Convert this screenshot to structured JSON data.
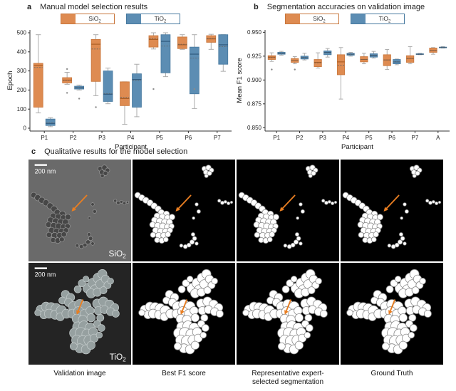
{
  "colors": {
    "sio2_fill": "#DE8B51",
    "sio2_edge": "#C8763B",
    "sio2_median": "#A85B22",
    "tio2_fill": "#5C8DB3",
    "tio2_edge": "#47799F",
    "tio2_median": "#2D567A",
    "whisker": "#ABABAB",
    "mean_line": "#666666",
    "flier": "#8A8A8A",
    "axis": "#333333",
    "arrow": "#E87E22"
  },
  "panel_a": {
    "letter": "a",
    "title": "Manual model selection results",
    "legend": [
      {
        "base": "SiO",
        "sub": "2",
        "color_key": "sio2"
      },
      {
        "base": "TiO",
        "sub": "2",
        "color_key": "tio2"
      }
    ],
    "chart_data": {
      "type": "box",
      "categories": [
        "P1",
        "P2",
        "P3",
        "P4",
        "P5",
        "P6",
        "P7"
      ],
      "xlabel": "Participant",
      "ylabel": "Epoch",
      "ylim": [
        -15,
        515
      ],
      "yticks": [
        0,
        100,
        200,
        300,
        400,
        500
      ],
      "ytick_decimals": 0,
      "series": [
        {
          "name": "SiO2",
          "color_key": "sio2",
          "boxes": [
            [
              80,
              110,
              330,
              340,
              490,
              318
            ],
            [
              230,
              237,
              252,
              265,
              293,
              250
            ],
            [
              170,
              245,
              440,
              465,
              490,
              415
            ],
            [
              20,
              118,
              155,
              243,
              243,
              162
            ],
            [
              415,
              425,
              465,
              485,
              500,
              470
            ],
            [
              413,
              417,
              437,
              478,
              490,
              440
            ],
            [
              413,
              450,
              468,
              485,
              492,
              470
            ]
          ]
        },
        {
          "name": "TiO2",
          "color_key": "tio2",
          "boxes": [
            [
              8,
              14,
              25,
              48,
              55,
              28
            ],
            [
              200,
              205,
              212,
              220,
              226,
              212
            ],
            [
              128,
              140,
              178,
              300,
              315,
              182
            ],
            [
              60,
              110,
              255,
              285,
              335,
              250
            ],
            [
              270,
              290,
              455,
              490,
              500,
              430
            ],
            [
              103,
              180,
              388,
              425,
              490,
              368
            ],
            [
              298,
              335,
              437,
              490,
              490,
              428
            ]
          ]
        }
      ],
      "fliers": [
        {
          "series": 0,
          "cat": 1,
          "y": 185
        },
        {
          "series": 0,
          "cat": 1,
          "y": 310
        },
        {
          "series": 1,
          "cat": 1,
          "y": 155
        },
        {
          "series": 0,
          "cat": 2,
          "y": 110
        },
        {
          "series": 0,
          "cat": 4,
          "y": 205
        },
        {
          "series": 1,
          "cat": 5,
          "y": 205
        }
      ]
    }
  },
  "panel_b": {
    "letter": "b",
    "title": "Segmentation accuracies on validation image",
    "legend": [
      {
        "base": "SiO",
        "sub": "2",
        "color_key": "sio2"
      },
      {
        "base": "TiO",
        "sub": "2",
        "color_key": "tio2"
      }
    ],
    "chart_data": {
      "type": "box",
      "categories": [
        "P1",
        "P2",
        "P3",
        "P4",
        "P5",
        "P6",
        "P7",
        "A"
      ],
      "xlabel": "Participant",
      "ylabel": "Mean F1 score",
      "ylim": [
        0.8465,
        0.9525
      ],
      "yticks": [
        0.85,
        0.875,
        0.9,
        0.925,
        0.95
      ],
      "ytick_decimals": 3,
      "series": [
        {
          "name": "SiO2",
          "color_key": "sio2",
          "boxes": [
            [
              0.9195,
              0.9215,
              0.924,
              0.9255,
              0.9285,
              0.9235
            ],
            [
              0.917,
              0.9185,
              0.9205,
              0.9225,
              0.9245,
              0.9205
            ],
            [
              0.9125,
              0.914,
              0.9185,
              0.9215,
              0.9285,
              0.918
            ],
            [
              0.88,
              0.9055,
              0.919,
              0.9265,
              0.934,
              0.9155
            ],
            [
              0.917,
              0.919,
              0.9215,
              0.9245,
              0.928,
              0.9215
            ],
            [
              0.911,
              0.915,
              0.921,
              0.9265,
              0.932,
              0.921
            ],
            [
              0.917,
              0.9185,
              0.9225,
              0.9255,
              0.935,
              0.9225
            ],
            [
              0.927,
              0.929,
              0.931,
              0.9335,
              0.934,
              0.931
            ]
          ]
        },
        {
          "name": "TiO2",
          "color_key": "tio2",
          "boxes": [
            [
              0.926,
              0.927,
              0.928,
              0.929,
              0.93,
              0.928
            ],
            [
              0.921,
              0.922,
              0.9235,
              0.925,
              0.928,
              0.9235
            ],
            [
              0.924,
              0.9265,
              0.929,
              0.9305,
              0.933,
              0.9285
            ],
            [
              0.925,
              0.926,
              0.927,
              0.928,
              0.929,
              0.927
            ],
            [
              0.923,
              0.924,
              0.926,
              0.9275,
              0.93,
              0.9255
            ],
            [
              0.916,
              0.917,
              0.919,
              0.9215,
              0.922,
              0.919
            ],
            [
              0.9265,
              0.927,
              0.927,
              0.9275,
              0.928,
              0.927
            ],
            [
              0.9335,
              0.934,
              0.934,
              0.9345,
              0.935,
              0.934
            ]
          ]
        }
      ],
      "fliers": [
        {
          "series": 0,
          "cat": 0,
          "y": 0.911
        },
        {
          "series": 0,
          "cat": 1,
          "y": 0.911
        }
      ]
    }
  },
  "panel_c": {
    "letter": "c",
    "title": "Qualitative results for the model selection",
    "scale_bar_label": "200 nm",
    "captions": [
      [
        "Validation image"
      ],
      [
        "Best F1 score"
      ],
      [
        "Representative expert-",
        "selected segmentation"
      ],
      [
        "Ground Truth"
      ]
    ],
    "rows": [
      {
        "type": "sio2",
        "label": {
          "base": "SiO",
          "sub": "2"
        }
      },
      {
        "type": "tio2",
        "label": {
          "base": "TiO",
          "sub": "2"
        }
      }
    ],
    "sem_colors": {
      "sio2_bg": "#6A6A6A",
      "sio2_particle": "#474747",
      "sio2_rim": "#9A9A9A",
      "tio2_bg": "#242424",
      "tio2_particle": "#96A0A0",
      "tio2_rim": "#C9D0D0",
      "mask_bg": "#000000",
      "mask_fill": "#FFFFFF",
      "mask_edge": "#8A8A8A"
    },
    "arrows": {
      "sio2": [
        57,
        35,
        42,
        51
      ],
      "tio2": [
        53,
        36,
        47,
        51
      ]
    },
    "particles": {
      "sio2": [
        [
          5,
          35,
          2.8
        ],
        [
          9,
          37.5,
          3
        ],
        [
          13,
          40,
          3
        ],
        [
          17,
          42.5,
          3
        ],
        [
          21,
          45.5,
          3
        ],
        [
          25,
          48.5,
          3
        ],
        [
          28,
          52,
          3
        ],
        [
          33,
          53.5,
          3
        ],
        [
          24,
          55.5,
          3
        ],
        [
          29,
          56.5,
          3.2
        ],
        [
          34,
          57.5,
          3.2
        ],
        [
          38.5,
          56.5,
          2.8
        ],
        [
          21.5,
          59.5,
          3
        ],
        [
          26.5,
          60.5,
          3.2
        ],
        [
          31.5,
          61.5,
          3.3
        ],
        [
          36,
          61.5,
          3
        ],
        [
          19.5,
          64,
          2.8
        ],
        [
          24.5,
          65,
          3.2
        ],
        [
          29.5,
          65.5,
          3.3
        ],
        [
          34,
          66.5,
          3.2
        ],
        [
          38,
          65.5,
          2.6
        ],
        [
          22.5,
          69.5,
          3
        ],
        [
          27.5,
          70.5,
          3.2
        ],
        [
          32.5,
          70.5,
          3.2
        ],
        [
          36.5,
          69.5,
          2.6
        ],
        [
          20,
          74,
          2.6
        ],
        [
          25.5,
          74.5,
          3
        ],
        [
          30.5,
          74.5,
          3
        ],
        [
          34.5,
          73.5,
          2.6
        ],
        [
          24,
          79,
          2.6
        ],
        [
          28.5,
          79.5,
          2.8
        ],
        [
          32.5,
          78.5,
          2.4
        ],
        [
          70,
          9,
          2.4
        ],
        [
          74,
          8,
          2.6
        ],
        [
          77,
          10.5,
          2.2
        ],
        [
          71.5,
          12.5,
          2.4
        ],
        [
          75,
          13.5,
          2.2
        ],
        [
          72,
          16,
          1.8
        ],
        [
          62.5,
          44,
          1.6
        ],
        [
          64.5,
          51,
          1.8
        ],
        [
          59.5,
          57.5,
          1.3
        ],
        [
          84.5,
          40.5,
          1.5
        ],
        [
          87.5,
          42.5,
          1.7
        ],
        [
          90.5,
          41.5,
          1.4
        ],
        [
          93.5,
          43,
          1.5
        ],
        [
          96.5,
          42,
          1.2
        ],
        [
          47.5,
          84.5,
          1.6
        ],
        [
          51.5,
          85.5,
          2
        ],
        [
          55,
          84,
          2
        ],
        [
          58,
          81,
          2.2
        ],
        [
          60.5,
          77.5,
          2
        ],
        [
          59,
          73.5,
          1.8
        ],
        [
          62.5,
          82.5,
          1.6
        ]
      ],
      "tio2": [
        [
          58,
          25,
          5
        ],
        [
          63,
          20,
          5
        ],
        [
          68,
          15,
          5
        ],
        [
          72,
          11,
          4.5
        ],
        [
          65,
          26,
          4.5
        ],
        [
          70,
          21,
          4.5
        ],
        [
          75,
          16,
          4
        ],
        [
          61,
          30,
          4.5
        ],
        [
          67,
          29,
          4
        ],
        [
          77,
          22,
          3.5
        ],
        [
          73,
          27,
          3.5
        ],
        [
          80,
          18,
          3
        ],
        [
          52,
          20,
          3.5
        ],
        [
          56,
          16,
          3
        ],
        [
          48,
          26,
          3.5
        ],
        [
          12,
          46,
          4.5
        ],
        [
          17,
          43,
          4.5
        ],
        [
          22,
          44,
          5
        ],
        [
          27,
          45,
          5
        ],
        [
          15,
          51,
          4
        ],
        [
          20,
          50,
          4.5
        ],
        [
          26,
          51,
          4.5
        ],
        [
          32,
          47,
          5
        ],
        [
          31,
          53,
          4
        ],
        [
          9,
          49,
          3
        ],
        [
          37,
          50,
          4.5
        ],
        [
          36,
          31,
          4
        ],
        [
          41,
          34,
          4
        ],
        [
          33,
          37,
          3.5
        ],
        [
          39,
          39,
          4
        ],
        [
          44,
          43,
          5
        ],
        [
          50,
          41,
          5
        ],
        [
          56,
          43,
          5
        ],
        [
          43,
          50,
          4.5
        ],
        [
          49,
          48,
          5
        ],
        [
          55,
          50,
          4.5
        ],
        [
          47,
          55,
          4.5
        ],
        [
          53,
          56,
          4.5
        ],
        [
          60,
          47,
          4
        ],
        [
          61,
          54,
          4
        ],
        [
          67,
          40,
          4.5
        ],
        [
          73,
          38,
          4.5
        ],
        [
          79,
          41,
          4.5
        ],
        [
          84,
          44,
          4
        ],
        [
          68,
          47,
          4
        ],
        [
          74,
          46,
          4
        ],
        [
          80,
          48,
          4
        ],
        [
          85,
          50,
          3.5
        ],
        [
          70,
          54,
          3.5
        ],
        [
          48,
          63,
          5
        ],
        [
          54,
          62,
          5
        ],
        [
          60,
          64,
          5
        ],
        [
          45,
          69,
          5
        ],
        [
          51,
          69,
          5.5
        ],
        [
          57,
          70,
          5
        ],
        [
          63,
          68,
          4.5
        ],
        [
          47,
          76,
          5
        ],
        [
          53,
          77,
          5.5
        ],
        [
          59,
          76,
          5
        ],
        [
          64,
          74,
          4
        ],
        [
          50,
          84,
          4.5
        ],
        [
          56,
          85,
          4.5
        ],
        [
          61,
          81,
          4
        ],
        [
          44,
          82,
          3.5
        ],
        [
          67,
          60,
          3.5
        ],
        [
          71,
          64,
          3.5
        ],
        [
          69,
          71,
          3
        ]
      ]
    }
  }
}
